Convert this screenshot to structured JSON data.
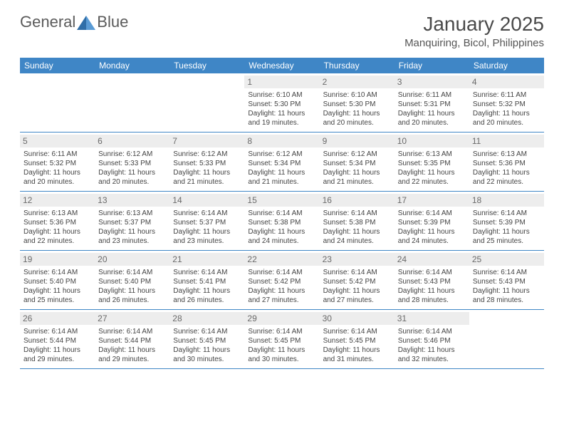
{
  "brand": {
    "name_part1": "General",
    "name_part2": "Blue",
    "logo_color": "#2f6ea8"
  },
  "title": "January 2025",
  "location": "Manquiring, Bicol, Philippines",
  "colors": {
    "header_bg": "#3f86c6",
    "header_text": "#ffffff",
    "daynum_bg": "#ededed",
    "daynum_text": "#6a6a6a",
    "body_text": "#444444",
    "title_text": "#4a4a4a"
  },
  "day_names": [
    "Sunday",
    "Monday",
    "Tuesday",
    "Wednesday",
    "Thursday",
    "Friday",
    "Saturday"
  ],
  "weeks": [
    [
      null,
      null,
      null,
      {
        "num": "1",
        "sunrise": "6:10 AM",
        "sunset": "5:30 PM",
        "dl1": "Daylight: 11 hours",
        "dl2": "and 19 minutes."
      },
      {
        "num": "2",
        "sunrise": "6:10 AM",
        "sunset": "5:30 PM",
        "dl1": "Daylight: 11 hours",
        "dl2": "and 20 minutes."
      },
      {
        "num": "3",
        "sunrise": "6:11 AM",
        "sunset": "5:31 PM",
        "dl1": "Daylight: 11 hours",
        "dl2": "and 20 minutes."
      },
      {
        "num": "4",
        "sunrise": "6:11 AM",
        "sunset": "5:32 PM",
        "dl1": "Daylight: 11 hours",
        "dl2": "and 20 minutes."
      }
    ],
    [
      {
        "num": "5",
        "sunrise": "6:11 AM",
        "sunset": "5:32 PM",
        "dl1": "Daylight: 11 hours",
        "dl2": "and 20 minutes."
      },
      {
        "num": "6",
        "sunrise": "6:12 AM",
        "sunset": "5:33 PM",
        "dl1": "Daylight: 11 hours",
        "dl2": "and 20 minutes."
      },
      {
        "num": "7",
        "sunrise": "6:12 AM",
        "sunset": "5:33 PM",
        "dl1": "Daylight: 11 hours",
        "dl2": "and 21 minutes."
      },
      {
        "num": "8",
        "sunrise": "6:12 AM",
        "sunset": "5:34 PM",
        "dl1": "Daylight: 11 hours",
        "dl2": "and 21 minutes."
      },
      {
        "num": "9",
        "sunrise": "6:12 AM",
        "sunset": "5:34 PM",
        "dl1": "Daylight: 11 hours",
        "dl2": "and 21 minutes."
      },
      {
        "num": "10",
        "sunrise": "6:13 AM",
        "sunset": "5:35 PM",
        "dl1": "Daylight: 11 hours",
        "dl2": "and 22 minutes."
      },
      {
        "num": "11",
        "sunrise": "6:13 AM",
        "sunset": "5:36 PM",
        "dl1": "Daylight: 11 hours",
        "dl2": "and 22 minutes."
      }
    ],
    [
      {
        "num": "12",
        "sunrise": "6:13 AM",
        "sunset": "5:36 PM",
        "dl1": "Daylight: 11 hours",
        "dl2": "and 22 minutes."
      },
      {
        "num": "13",
        "sunrise": "6:13 AM",
        "sunset": "5:37 PM",
        "dl1": "Daylight: 11 hours",
        "dl2": "and 23 minutes."
      },
      {
        "num": "14",
        "sunrise": "6:14 AM",
        "sunset": "5:37 PM",
        "dl1": "Daylight: 11 hours",
        "dl2": "and 23 minutes."
      },
      {
        "num": "15",
        "sunrise": "6:14 AM",
        "sunset": "5:38 PM",
        "dl1": "Daylight: 11 hours",
        "dl2": "and 24 minutes."
      },
      {
        "num": "16",
        "sunrise": "6:14 AM",
        "sunset": "5:38 PM",
        "dl1": "Daylight: 11 hours",
        "dl2": "and 24 minutes."
      },
      {
        "num": "17",
        "sunrise": "6:14 AM",
        "sunset": "5:39 PM",
        "dl1": "Daylight: 11 hours",
        "dl2": "and 24 minutes."
      },
      {
        "num": "18",
        "sunrise": "6:14 AM",
        "sunset": "5:39 PM",
        "dl1": "Daylight: 11 hours",
        "dl2": "and 25 minutes."
      }
    ],
    [
      {
        "num": "19",
        "sunrise": "6:14 AM",
        "sunset": "5:40 PM",
        "dl1": "Daylight: 11 hours",
        "dl2": "and 25 minutes."
      },
      {
        "num": "20",
        "sunrise": "6:14 AM",
        "sunset": "5:40 PM",
        "dl1": "Daylight: 11 hours",
        "dl2": "and 26 minutes."
      },
      {
        "num": "21",
        "sunrise": "6:14 AM",
        "sunset": "5:41 PM",
        "dl1": "Daylight: 11 hours",
        "dl2": "and 26 minutes."
      },
      {
        "num": "22",
        "sunrise": "6:14 AM",
        "sunset": "5:42 PM",
        "dl1": "Daylight: 11 hours",
        "dl2": "and 27 minutes."
      },
      {
        "num": "23",
        "sunrise": "6:14 AM",
        "sunset": "5:42 PM",
        "dl1": "Daylight: 11 hours",
        "dl2": "and 27 minutes."
      },
      {
        "num": "24",
        "sunrise": "6:14 AM",
        "sunset": "5:43 PM",
        "dl1": "Daylight: 11 hours",
        "dl2": "and 28 minutes."
      },
      {
        "num": "25",
        "sunrise": "6:14 AM",
        "sunset": "5:43 PM",
        "dl1": "Daylight: 11 hours",
        "dl2": "and 28 minutes."
      }
    ],
    [
      {
        "num": "26",
        "sunrise": "6:14 AM",
        "sunset": "5:44 PM",
        "dl1": "Daylight: 11 hours",
        "dl2": "and 29 minutes."
      },
      {
        "num": "27",
        "sunrise": "6:14 AM",
        "sunset": "5:44 PM",
        "dl1": "Daylight: 11 hours",
        "dl2": "and 29 minutes."
      },
      {
        "num": "28",
        "sunrise": "6:14 AM",
        "sunset": "5:45 PM",
        "dl1": "Daylight: 11 hours",
        "dl2": "and 30 minutes."
      },
      {
        "num": "29",
        "sunrise": "6:14 AM",
        "sunset": "5:45 PM",
        "dl1": "Daylight: 11 hours",
        "dl2": "and 30 minutes."
      },
      {
        "num": "30",
        "sunrise": "6:14 AM",
        "sunset": "5:45 PM",
        "dl1": "Daylight: 11 hours",
        "dl2": "and 31 minutes."
      },
      {
        "num": "31",
        "sunrise": "6:14 AM",
        "sunset": "5:46 PM",
        "dl1": "Daylight: 11 hours",
        "dl2": "and 32 minutes."
      },
      null
    ]
  ],
  "labels": {
    "sunrise_prefix": "Sunrise: ",
    "sunset_prefix": "Sunset: "
  }
}
